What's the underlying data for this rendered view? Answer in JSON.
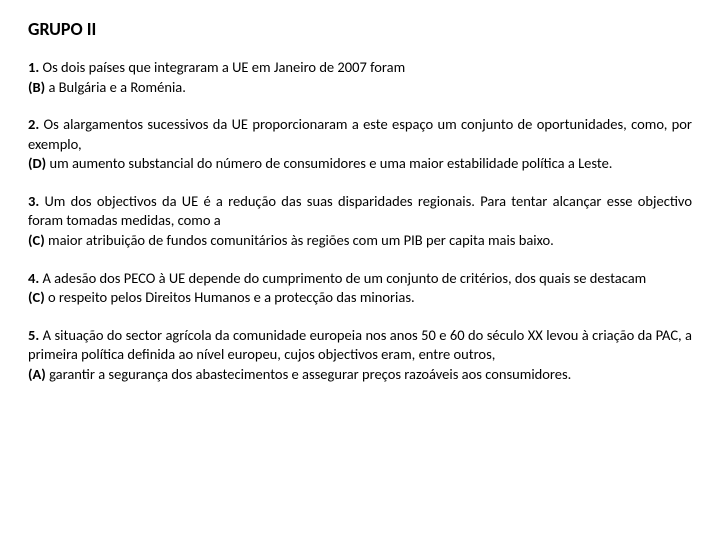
{
  "title": "GRUPO II",
  "q1": {
    "num": "1.",
    "intro": " Os dois países que integraram a UE em Janeiro de 2007 foram",
    "opt": "(B)",
    "ans": " a Bulgária e a Roménia."
  },
  "q2": {
    "num": "2.",
    "intro": " Os alargamentos sucessivos da UE proporcionaram a este espaço um conjunto de oportunidades, como, por exemplo,",
    "opt": "(D)",
    "ans": " um aumento substancial do número de consumidores e uma maior estabilidade política a Leste."
  },
  "q3": {
    "num": "3.",
    "intro": " Um dos objectivos da UE é a redução das suas disparidades regionais. Para tentar alcançar esse objectivo foram tomadas medidas, como a",
    "opt": "(C)",
    "ans": " maior atribuição de fundos comunitários às regiões com um PIB per capita mais baixo."
  },
  "q4": {
    "num": "4.",
    "intro": " A adesão dos PECO à UE depende do cumprimento de um conjunto de critérios, dos quais se destacam",
    "opt": "(C)",
    "ans": " o respeito pelos Direitos Humanos e a protecção das minorias."
  },
  "q5": {
    "num": "5.",
    "intro": " A situação do sector agrícola da comunidade europeia nos anos 50 e 60 do século XX levou à criação da PAC, a primeira política definida ao nível europeu, cujos objectivos eram, entre outros,",
    "opt": "(A)",
    "ans": " garantir a segurança dos abastecimentos e assegurar preços razoáveis aos consumidores."
  }
}
